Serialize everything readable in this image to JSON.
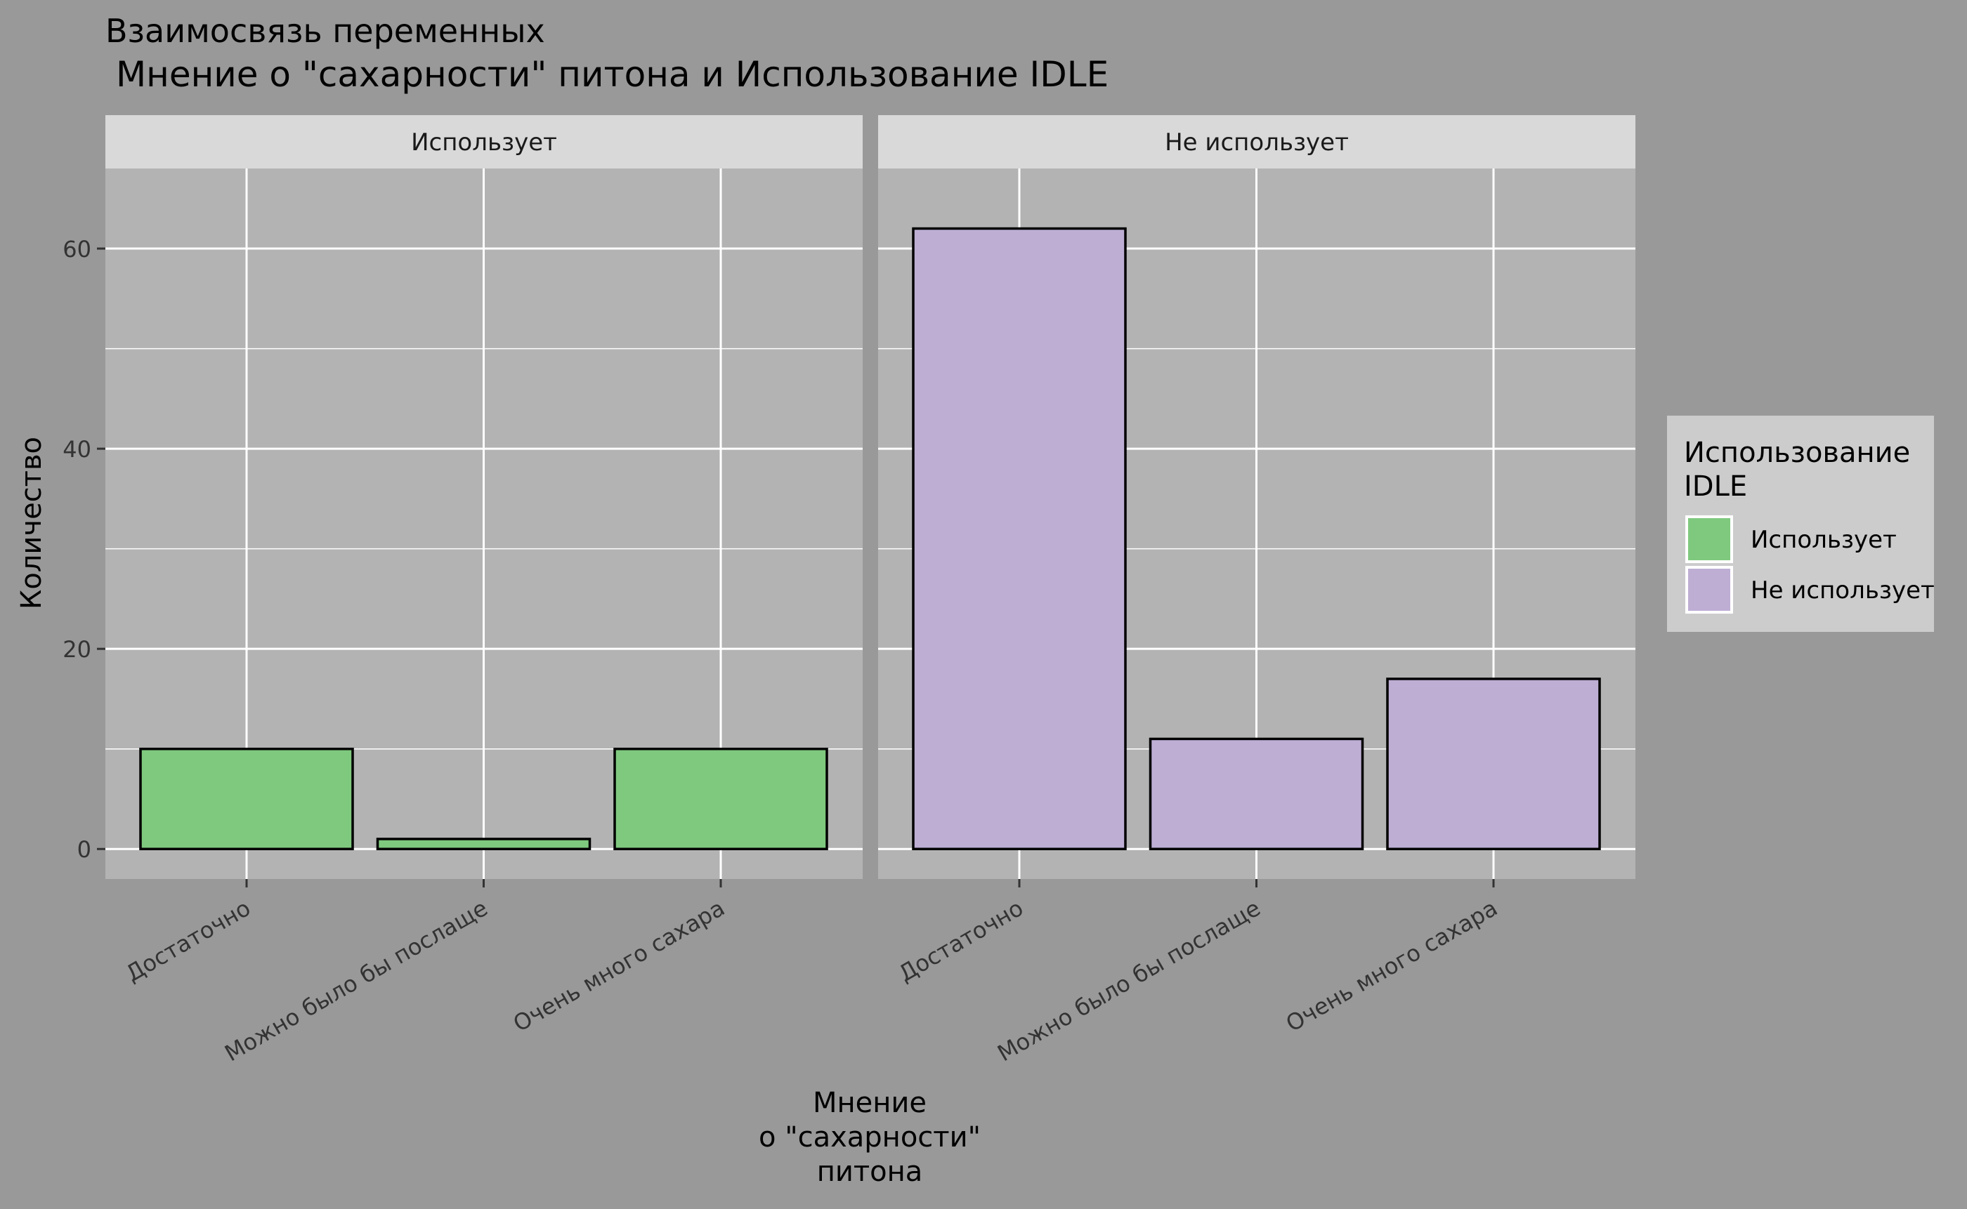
{
  "chart_data": {
    "type": "bar",
    "title": "Взаимосвязь переменных",
    "subtitle": "Мнение о \"сахарности\" питона и Использование IDLE",
    "xlabel": [
      "Мнение",
      "о \"сахарности\"",
      "питона"
    ],
    "ylabel": "Количество",
    "ylim": [
      -3,
      68
    ],
    "yticks": [
      0,
      20,
      40,
      60
    ],
    "grid": true,
    "categories": [
      "Достаточно",
      "Можно было бы послаще",
      "Очень много сахара"
    ],
    "facets": [
      {
        "label": "Использует",
        "series_name": "Использует",
        "color": "#7FC97F",
        "values": [
          10,
          1,
          10
        ]
      },
      {
        "label": "Не использует",
        "series_name": "Не использует",
        "color": "#BEAED4",
        "values": [
          62,
          11,
          17
        ]
      }
    ],
    "legend": {
      "title": [
        "Использование",
        "IDLE"
      ],
      "position": "right",
      "entries": [
        {
          "label": "Использует",
          "color": "#7FC97F"
        },
        {
          "label": "Не использует",
          "color": "#BEAED4"
        }
      ]
    }
  },
  "colors": {
    "background": "#999999",
    "panel": "#B3B3B3",
    "strip": "#D9D9D9",
    "legend_bg": "#CCCCCC",
    "gridline": "#FFFFFF"
  }
}
